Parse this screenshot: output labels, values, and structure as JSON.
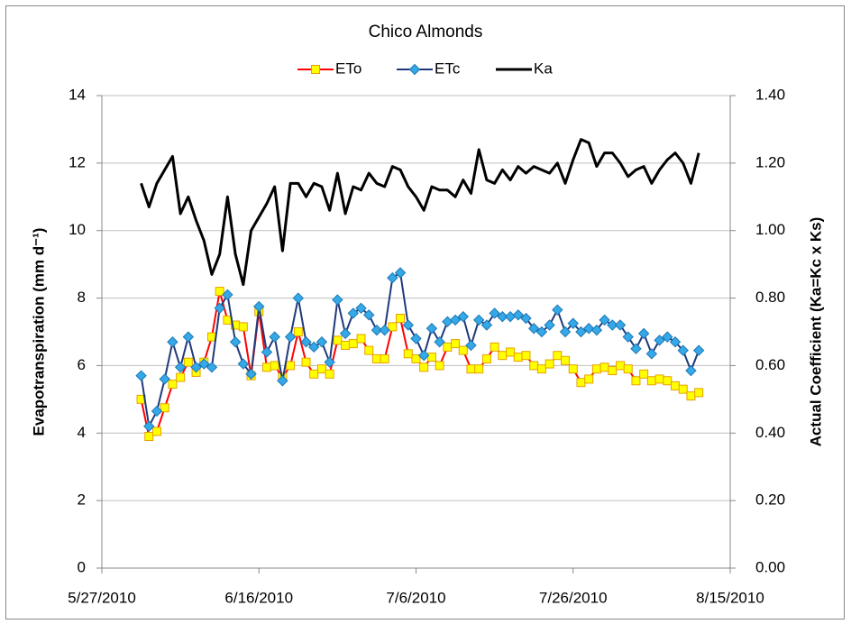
{
  "chart_data": {
    "type": "line",
    "title": "Chico Almonds",
    "ylabel": "Evapotranspiration (mm d⁻¹)",
    "y2label": "Actual Coefficient (Ka=Kc x Ks)",
    "xlim": [
      "5/27/2010",
      "8/15/2010"
    ],
    "xticks": [
      "5/27/2010",
      "6/16/2010",
      "7/6/2010",
      "7/26/2010",
      "8/15/2010"
    ],
    "ylim": [
      0,
      14
    ],
    "yticks": [
      0,
      2,
      4,
      6,
      8,
      10,
      12,
      14
    ],
    "y2lim": [
      0,
      1.4
    ],
    "y2ticks": [
      {
        "value": 0,
        "label": "0.00"
      },
      {
        "value": 0.2,
        "label": "0.20"
      },
      {
        "value": 0.4,
        "label": "0.40"
      },
      {
        "value": 0.6,
        "label": "0.60"
      },
      {
        "value": 0.8,
        "label": "0.80"
      },
      {
        "value": 1.0,
        "label": "1.00"
      },
      {
        "value": 1.2,
        "label": "1.20"
      },
      {
        "value": 1.4,
        "label": "1.40"
      }
    ],
    "grid": true,
    "legend": "top",
    "x": [
      "6/1/2010",
      "6/2/2010",
      "6/3/2010",
      "6/4/2010",
      "6/5/2010",
      "6/6/2010",
      "6/7/2010",
      "6/8/2010",
      "6/9/2010",
      "6/10/2010",
      "6/11/2010",
      "6/12/2010",
      "6/13/2010",
      "6/14/2010",
      "6/15/2010",
      "6/16/2010",
      "6/17/2010",
      "6/18/2010",
      "6/19/2010",
      "6/20/2010",
      "6/21/2010",
      "6/22/2010",
      "6/23/2010",
      "6/24/2010",
      "6/25/2010",
      "6/26/2010",
      "6/27/2010",
      "6/28/2010",
      "6/29/2010",
      "6/30/2010",
      "7/1/2010",
      "7/2/2010",
      "7/3/2010",
      "7/4/2010",
      "7/5/2010",
      "7/6/2010",
      "7/7/2010",
      "7/8/2010",
      "7/9/2010",
      "7/10/2010",
      "7/11/2010",
      "7/12/2010",
      "7/13/2010",
      "7/14/2010",
      "7/15/2010",
      "7/16/2010",
      "7/17/2010",
      "7/18/2010",
      "7/19/2010",
      "7/20/2010",
      "7/21/2010",
      "7/22/2010",
      "7/23/2010",
      "7/24/2010",
      "7/25/2010",
      "7/26/2010",
      "7/27/2010",
      "7/28/2010",
      "7/29/2010",
      "7/30/2010",
      "7/31/2010",
      "8/1/2010",
      "8/2/2010",
      "8/3/2010",
      "8/4/2010",
      "8/5/2010",
      "8/6/2010",
      "8/7/2010",
      "8/8/2010",
      "8/9/2010",
      "8/10/2010",
      "8/11/2010"
    ],
    "series": [
      {
        "name": "ETo",
        "color": "#ff0000",
        "marker": "square",
        "marker_color": "#ffff00",
        "marker_edge": "#e8a000",
        "values": [
          5.0,
          3.9,
          4.05,
          4.75,
          5.45,
          5.65,
          6.1,
          5.8,
          6.1,
          6.85,
          8.2,
          7.35,
          7.2,
          7.15,
          5.7,
          7.6,
          5.95,
          6.0,
          5.65,
          6.0,
          7.0,
          6.1,
          5.75,
          5.9,
          5.75,
          6.75,
          6.6,
          6.65,
          6.8,
          6.45,
          6.2,
          6.2,
          7.15,
          7.4,
          6.35,
          6.2,
          5.95,
          6.25,
          6.0,
          6.55,
          6.65,
          6.45,
          5.9,
          5.9,
          6.2,
          6.55,
          6.3,
          6.4,
          6.25,
          6.3,
          6.0,
          5.9,
          6.05,
          6.3,
          6.15,
          5.9,
          5.5,
          5.6,
          5.9,
          5.95,
          5.85,
          6.0,
          5.9,
          5.55,
          5.75,
          5.55,
          5.6,
          5.55,
          5.4,
          5.3,
          5.1,
          5.2
        ]
      },
      {
        "name": "ETc",
        "color": "#1f3a7a",
        "marker": "diamond",
        "marker_color": "#35a8e8",
        "marker_edge": "#1f78b4",
        "values": [
          5.7,
          4.2,
          4.65,
          5.6,
          6.7,
          5.95,
          6.85,
          5.95,
          6.05,
          5.95,
          7.7,
          8.1,
          6.7,
          6.05,
          5.75,
          7.75,
          6.4,
          6.85,
          5.55,
          6.85,
          8.0,
          6.7,
          6.55,
          6.7,
          6.1,
          7.95,
          6.95,
          7.55,
          7.7,
          7.5,
          7.05,
          7.05,
          8.6,
          8.75,
          7.2,
          6.8,
          6.3,
          7.1,
          6.7,
          7.3,
          7.35,
          7.45,
          6.6,
          7.35,
          7.2,
          7.55,
          7.45,
          7.45,
          7.5,
          7.4,
          7.1,
          7.0,
          7.2,
          7.65,
          7.0,
          7.25,
          7.0,
          7.1,
          7.05,
          7.35,
          7.2,
          7.2,
          6.85,
          6.5,
          6.95,
          6.35,
          6.75,
          6.85,
          6.7,
          6.45,
          5.85,
          6.45
        ]
      },
      {
        "name": "Ka",
        "color": "#000000",
        "marker": "none",
        "axis": "y2",
        "values": [
          1.14,
          1.07,
          1.14,
          1.18,
          1.22,
          1.05,
          1.1,
          1.03,
          0.97,
          0.87,
          0.93,
          1.1,
          0.93,
          0.84,
          1.0,
          1.04,
          1.08,
          1.13,
          0.94,
          1.14,
          1.14,
          1.1,
          1.14,
          1.13,
          1.06,
          1.17,
          1.05,
          1.13,
          1.12,
          1.17,
          1.14,
          1.13,
          1.19,
          1.18,
          1.13,
          1.1,
          1.06,
          1.13,
          1.12,
          1.12,
          1.1,
          1.15,
          1.11,
          1.24,
          1.15,
          1.14,
          1.18,
          1.15,
          1.19,
          1.17,
          1.19,
          1.18,
          1.17,
          1.2,
          1.14,
          1.21,
          1.27,
          1.26,
          1.19,
          1.23,
          1.23,
          1.2,
          1.16,
          1.18,
          1.19,
          1.14,
          1.18,
          1.21,
          1.23,
          1.2,
          1.14,
          1.23
        ]
      }
    ]
  }
}
